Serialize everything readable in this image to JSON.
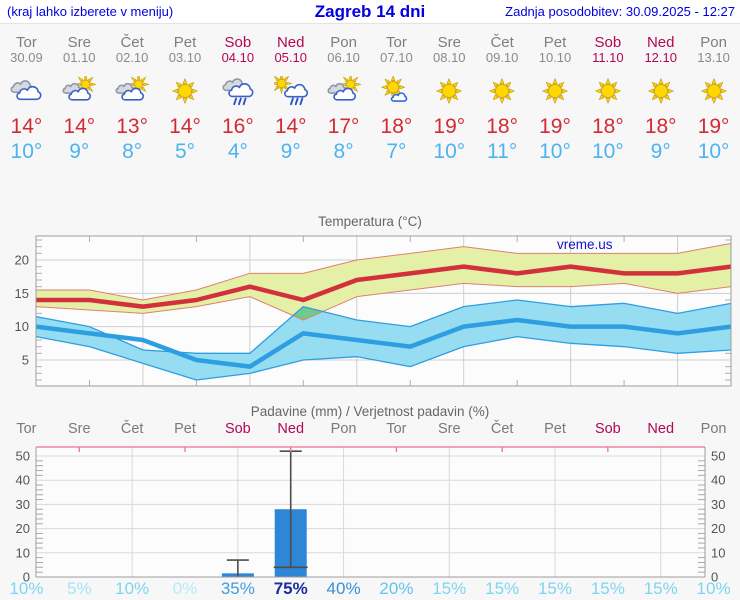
{
  "header": {
    "left_hint": "(kraj lahko izberete v meniju)",
    "title": "Zagreb 14 dni",
    "last_update": "Zadnja posodobitev: 30.09.2025 - 12:27",
    "text_color": "#0000e0"
  },
  "days": [
    {
      "name": "Tor",
      "date": "30.09",
      "weekend": false,
      "icon": "cloudy",
      "tmax": "14°",
      "tmin": "10°",
      "prob": "10%",
      "prob_color": "#7dd5f1"
    },
    {
      "name": "Sre",
      "date": "01.10",
      "weekend": false,
      "icon": "partly-cloudy",
      "tmax": "14°",
      "tmin": "9°",
      "prob": "5%",
      "prob_color": "#a5e5f7"
    },
    {
      "name": "Čet",
      "date": "02.10",
      "weekend": false,
      "icon": "partly-cloudy",
      "tmax": "13°",
      "tmin": "8°",
      "prob": "10%",
      "prob_color": "#7dd5f1"
    },
    {
      "name": "Pet",
      "date": "03.10",
      "weekend": false,
      "icon": "sunny",
      "tmax": "14°",
      "tmin": "5°",
      "prob": "0%",
      "prob_color": "#b5ebf9"
    },
    {
      "name": "Sob",
      "date": "04.10",
      "weekend": true,
      "icon": "rain",
      "tmax": "16°",
      "tmin": "4°",
      "prob": "35%",
      "prob_color": "#3f9fdd"
    },
    {
      "name": "Ned",
      "date": "05.10",
      "weekend": true,
      "icon": "sun-rain",
      "tmax": "14°",
      "tmin": "9°",
      "prob": "75%",
      "prob_color": "#1c2fa0"
    },
    {
      "name": "Pon",
      "date": "06.10",
      "weekend": false,
      "icon": "partly-cloudy",
      "tmax": "17°",
      "tmin": "8°",
      "prob": "40%",
      "prob_color": "#3590d8"
    },
    {
      "name": "Tor",
      "date": "07.10",
      "weekend": false,
      "icon": "mostly-sunny",
      "tmax": "18°",
      "tmin": "7°",
      "prob": "20%",
      "prob_color": "#5fc4ec"
    },
    {
      "name": "Sre",
      "date": "08.10",
      "weekend": false,
      "icon": "sunny",
      "tmax": "19°",
      "tmin": "10°",
      "prob": "15%",
      "prob_color": "#7dd5f1"
    },
    {
      "name": "Čet",
      "date": "09.10",
      "weekend": false,
      "icon": "sunny",
      "tmax": "18°",
      "tmin": "11°",
      "prob": "15%",
      "prob_color": "#7dd5f1"
    },
    {
      "name": "Pet",
      "date": "10.10",
      "weekend": false,
      "icon": "sunny",
      "tmax": "19°",
      "tmin": "10°",
      "prob": "15%",
      "prob_color": "#7dd5f1"
    },
    {
      "name": "Sob",
      "date": "11.10",
      "weekend": true,
      "icon": "sunny",
      "tmax": "18°",
      "tmin": "10°",
      "prob": "15%",
      "prob_color": "#7dd5f1"
    },
    {
      "name": "Ned",
      "date": "12.10",
      "weekend": true,
      "icon": "sunny",
      "tmax": "18°",
      "tmin": "9°",
      "prob": "15%",
      "prob_color": "#7dd5f1"
    },
    {
      "name": "Pon",
      "date": "13.10",
      "weekend": false,
      "icon": "sunny",
      "tmax": "19°",
      "tmin": "10°",
      "prob": "10%",
      "prob_color": "#7dd5f1"
    }
  ],
  "colors": {
    "weekday_text": "#7f7f7f",
    "weekend_text": "#b30753",
    "max_temp_text": "#d22b35",
    "min_temp_text": "#4cb4f0",
    "grid": "#cfcfcf",
    "axis": "#9e9e9e"
  },
  "chart_data": [
    {
      "type": "line",
      "title": "Temperatura (°C)",
      "watermark": "vreme.us",
      "x_categories": [
        "Tor",
        "Sre",
        "Čet",
        "Pet",
        "Sob",
        "Ned",
        "Pon",
        "Tor",
        "Sre",
        "Čet",
        "Pet",
        "Sob",
        "Ned",
        "Pon"
      ],
      "yticks": [
        5,
        10,
        15,
        20
      ],
      "ylim": [
        1.1,
        23.6
      ],
      "grid": true,
      "series": [
        {
          "name": "max temperature",
          "color": "#d2303c",
          "values": [
            14,
            14,
            13,
            14,
            16,
            14,
            17,
            18,
            19,
            18,
            19,
            18,
            18,
            19
          ]
        },
        {
          "name": "min temperature",
          "color": "#2d9fe0",
          "values": [
            10,
            9,
            8,
            5,
            4,
            9,
            8,
            7,
            10,
            11,
            10,
            10,
            9,
            10
          ]
        }
      ],
      "bands": [
        {
          "name": "max temperature range",
          "fill": "#e4f0a6",
          "edge": "#e08070",
          "upper": [
            15.5,
            15.5,
            14,
            15.5,
            18,
            18,
            20,
            21,
            22,
            21,
            21,
            21,
            21,
            22.5
          ],
          "lower": [
            13,
            12.5,
            12,
            13,
            14.5,
            11,
            14.5,
            15.5,
            16.5,
            16,
            16,
            16.5,
            15,
            16
          ]
        },
        {
          "name": "min temperature range",
          "fill": "#97ddf2",
          "edge": "#2d9fe0",
          "upper": [
            11.5,
            10,
            6.5,
            6,
            6,
            13,
            11,
            10,
            13,
            14,
            13,
            13.5,
            12,
            13.5
          ],
          "lower": [
            8.5,
            7,
            4.5,
            2,
            3,
            5,
            5.5,
            4,
            7,
            8.5,
            7.5,
            7,
            6,
            6.5
          ]
        }
      ],
      "overlap_color": "#6fcb8b"
    },
    {
      "type": "bar",
      "title": "Padavine (mm) / Verjetnost padavin (%)",
      "categories": [
        "Tor",
        "Sre",
        "Čet",
        "Pet",
        "Sob",
        "Ned",
        "Pon",
        "Tor",
        "Sre",
        "Čet",
        "Pet",
        "Sob",
        "Ned",
        "Pon"
      ],
      "values_mm": [
        0,
        0,
        0,
        0,
        1.5,
        28,
        0,
        0,
        0,
        0,
        0,
        0,
        0,
        0
      ],
      "whiskers_mm": [
        null,
        null,
        null,
        null,
        [
          0,
          7
        ],
        [
          4,
          52
        ],
        null,
        null,
        null,
        null,
        null,
        null,
        null,
        null
      ],
      "probability_pct": [
        10,
        5,
        10,
        0,
        35,
        75,
        40,
        20,
        15,
        15,
        15,
        15,
        15,
        10
      ],
      "yticks": [
        0,
        10,
        20,
        30,
        40,
        50
      ],
      "ylim": [
        0,
        53
      ],
      "bar_color": "#2e86d6",
      "whisker_color": "#4d4d4d",
      "top_border_color": "#ee7090"
    }
  ]
}
